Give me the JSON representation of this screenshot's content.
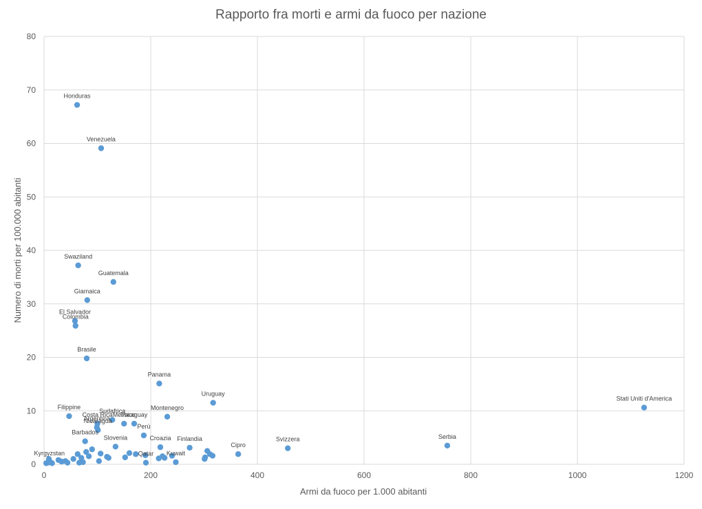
{
  "colors": {
    "point": "#5b9bd5",
    "grid": "#d9d9d9",
    "text": "#595959"
  },
  "chart_data": {
    "type": "scatter",
    "title": "Rapporto fra morti e armi da fuoco per nazione",
    "xlabel": "Armi da fuoco per 1.000 abitanti",
    "ylabel": "Numero di morti per 100.000 abitanti",
    "xlim": [
      0,
      1200
    ],
    "ylim": [
      0,
      80
    ],
    "xticks": [
      0,
      200,
      400,
      600,
      800,
      1000,
      1200
    ],
    "yticks": [
      0,
      10,
      20,
      30,
      40,
      50,
      60,
      70,
      80
    ],
    "grid": true,
    "legend": "none",
    "points": [
      {
        "label": "Honduras",
        "x": 62,
        "y": 67.2
      },
      {
        "label": "Venezuela",
        "x": 107,
        "y": 59.1
      },
      {
        "label": "Swaziland",
        "x": 64,
        "y": 37.2
      },
      {
        "label": "Guatemala",
        "x": 130,
        "y": 34.1
      },
      {
        "label": "Giamaica",
        "x": 81,
        "y": 30.7
      },
      {
        "label": "El Salvador",
        "x": 58,
        "y": 26.8
      },
      {
        "label": "Colombia",
        "x": 59,
        "y": 25.9
      },
      {
        "label": "Brasile",
        "x": 80,
        "y": 19.8
      },
      {
        "label": "Panama",
        "x": 216,
        "y": 15.1
      },
      {
        "label": "Uruguay",
        "x": 317,
        "y": 11.5
      },
      {
        "label": "Stati Uniti d'America",
        "x": 1125,
        "y": 10.6
      },
      {
        "label": "Filippine",
        "x": 47,
        "y": 9.0
      },
      {
        "label": "Montenegro",
        "x": 231,
        "y": 8.9
      },
      {
        "label": "Sudafrica",
        "x": 128,
        "y": 8.3
      },
      {
        "label": "Costa Rica",
        "x": 100,
        "y": 7.6
      },
      {
        "label": "Messico",
        "x": 150,
        "y": 7.6
      },
      {
        "label": "Paraguay",
        "x": 169,
        "y": 7.6
      },
      {
        "label": "Argentina",
        "x": 99,
        "y": 6.9
      },
      {
        "label": "Perù",
        "x": 187,
        "y": 5.4
      },
      {
        "label": "Nicaragua",
        "x": 101,
        "y": 6.4
      },
      {
        "label": "Barbados",
        "x": 77,
        "y": 4.3
      },
      {
        "label": "Slovenia",
        "x": 134,
        "y": 3.3
      },
      {
        "label": "Croazia",
        "x": 218,
        "y": 3.2
      },
      {
        "label": "Finlandia",
        "x": 273,
        "y": 3.1
      },
      {
        "label": "Svizzera",
        "x": 457,
        "y": 3.0
      },
      {
        "label": "Serbia",
        "x": 756,
        "y": 3.5
      },
      {
        "label": "Cipro",
        "x": 364,
        "y": 1.9
      },
      {
        "label": "Kuwait",
        "x": 247,
        "y": 0.4
      },
      {
        "label": "Qatar",
        "x": 191,
        "y": 0.3
      },
      {
        "label": "Kyrgyzstan",
        "x": 10,
        "y": 0.4
      },
      {
        "label": "",
        "x": 4,
        "y": 0.2
      },
      {
        "label": "",
        "x": 7,
        "y": 0.3
      },
      {
        "label": "",
        "x": 9,
        "y": 1.0
      },
      {
        "label": "",
        "x": 12,
        "y": 0.4
      },
      {
        "label": "",
        "x": 15,
        "y": 0.2
      },
      {
        "label": "",
        "x": 27,
        "y": 0.8
      },
      {
        "label": "",
        "x": 33,
        "y": 0.5
      },
      {
        "label": "",
        "x": 40,
        "y": 0.6
      },
      {
        "label": "",
        "x": 44,
        "y": 0.3
      },
      {
        "label": "",
        "x": 55,
        "y": 1.0
      },
      {
        "label": "",
        "x": 63,
        "y": 1.9
      },
      {
        "label": "",
        "x": 66,
        "y": 0.3
      },
      {
        "label": "",
        "x": 70,
        "y": 1.2
      },
      {
        "label": "",
        "x": 73,
        "y": 0.4
      },
      {
        "label": "",
        "x": 79,
        "y": 2.3
      },
      {
        "label": "",
        "x": 84,
        "y": 1.5
      },
      {
        "label": "",
        "x": 90,
        "y": 2.8
      },
      {
        "label": "",
        "x": 103,
        "y": 0.6
      },
      {
        "label": "",
        "x": 106,
        "y": 2.0
      },
      {
        "label": "",
        "x": 118,
        "y": 1.4
      },
      {
        "label": "",
        "x": 121,
        "y": 1.2
      },
      {
        "label": "",
        "x": 152,
        "y": 1.3
      },
      {
        "label": "",
        "x": 160,
        "y": 2.1
      },
      {
        "label": "",
        "x": 172,
        "y": 1.9
      },
      {
        "label": "",
        "x": 190,
        "y": 1.7
      },
      {
        "label": "",
        "x": 215,
        "y": 1.1
      },
      {
        "label": "",
        "x": 222,
        "y": 1.5
      },
      {
        "label": "",
        "x": 226,
        "y": 1.2
      },
      {
        "label": "",
        "x": 240,
        "y": 1.6
      },
      {
        "label": "",
        "x": 301,
        "y": 1.0
      },
      {
        "label": "",
        "x": 302,
        "y": 1.3
      },
      {
        "label": "",
        "x": 306,
        "y": 2.5
      },
      {
        "label": "",
        "x": 311,
        "y": 1.9
      },
      {
        "label": "",
        "x": 316,
        "y": 1.6
      }
    ]
  }
}
